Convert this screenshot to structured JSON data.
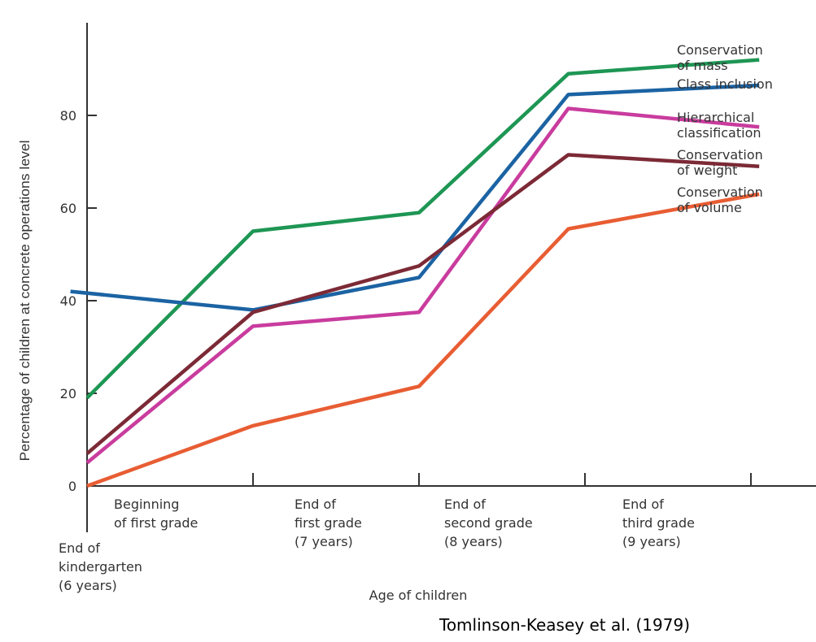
{
  "chart_data": {
    "type": "line",
    "ylabel": "Percentage of children at concrete operations level",
    "xlabel": "Age of children",
    "ylim": [
      0,
      95
    ],
    "yticks": [
      0,
      20,
      40,
      60,
      80
    ],
    "grid": false,
    "categories": [
      [
        "End of",
        "kindergarten",
        "(6 years)"
      ],
      [
        "Beginning",
        "of first grade"
      ],
      [
        "End of",
        "first grade",
        "(7 years)"
      ],
      [
        "End of",
        "second grade",
        "(8 years)"
      ],
      [
        "End of",
        "third grade",
        "(9 years)"
      ]
    ],
    "series": [
      {
        "name": [
          "Conservation",
          "of mass"
        ],
        "color": "#1e9654",
        "points": [
          [
            0,
            19
          ],
          [
            1,
            55
          ],
          [
            2,
            59
          ],
          [
            2.9,
            89
          ],
          [
            4.05,
            92
          ]
        ]
      },
      {
        "name": [
          "Class inclusion"
        ],
        "color": "#1b63a3",
        "points": [
          [
            -0.1,
            42
          ],
          [
            1,
            38
          ],
          [
            2,
            45
          ],
          [
            2.9,
            84.5
          ],
          [
            4.05,
            86.5
          ]
        ]
      },
      {
        "name": [
          "Hierarchical",
          "classification"
        ],
        "color": "#c93c9e",
        "points": [
          [
            0,
            5
          ],
          [
            1,
            34.5
          ],
          [
            2,
            37.5
          ],
          [
            2.9,
            81.5
          ],
          [
            4.05,
            77.5
          ]
        ]
      },
      {
        "name": [
          "Conservation",
          "of weight"
        ],
        "color": "#7c2a36",
        "points": [
          [
            0,
            7
          ],
          [
            1,
            37.5
          ],
          [
            2,
            47.5
          ],
          [
            2.9,
            71.5
          ],
          [
            4.05,
            69
          ]
        ]
      },
      {
        "name": [
          "Conservation",
          "of volume"
        ],
        "color": "#e85d33",
        "points": [
          [
            0,
            0
          ],
          [
            1,
            13
          ],
          [
            2,
            21.5
          ],
          [
            2.9,
            55.5
          ],
          [
            4.05,
            63
          ]
        ]
      }
    ]
  },
  "source": "Tomlinson-Keasey et al. (1979)"
}
